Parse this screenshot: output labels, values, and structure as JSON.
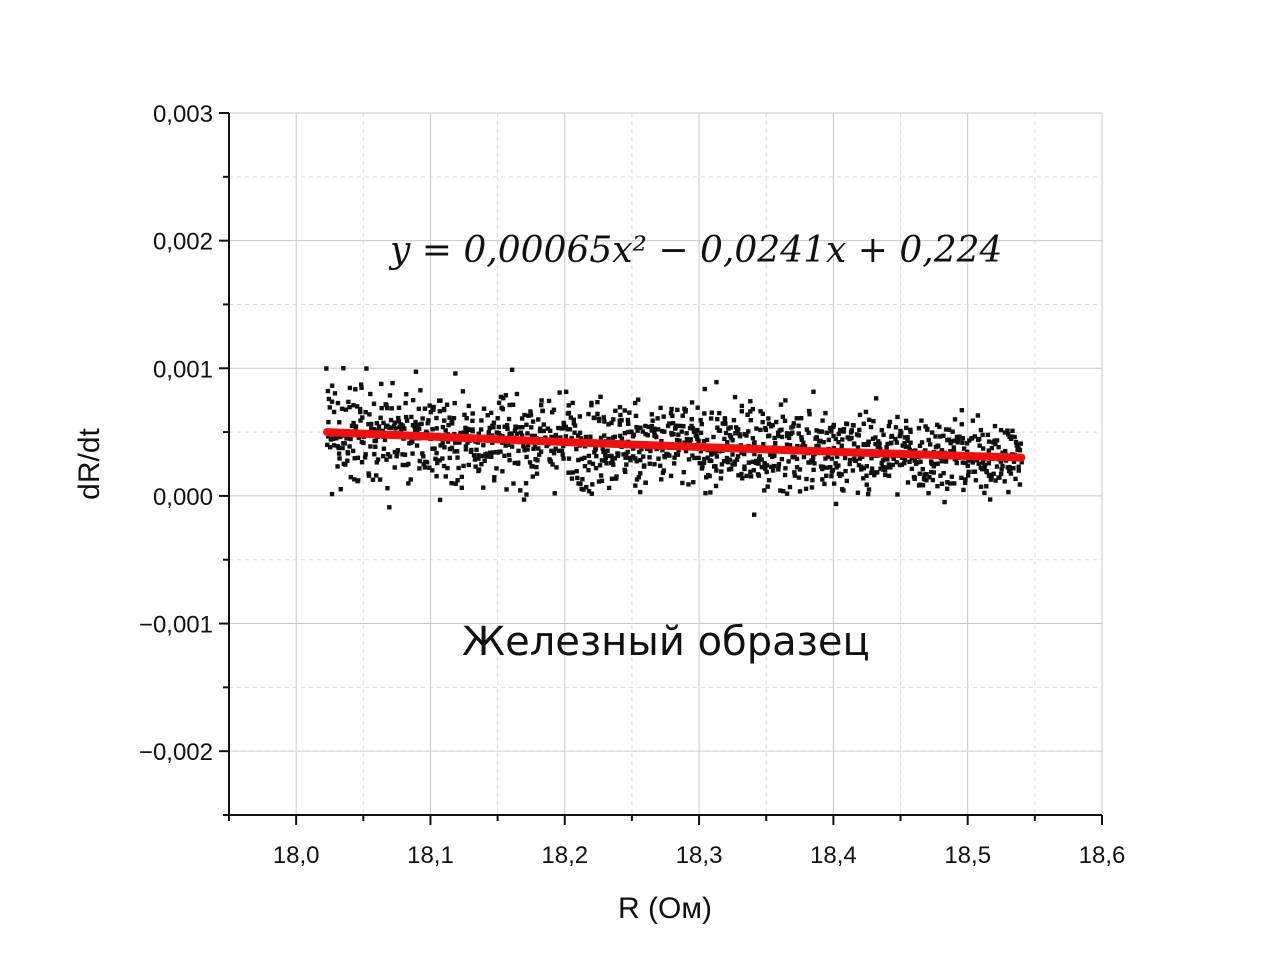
{
  "chart_data": {
    "type": "scatter",
    "xlabel": "R (Ом)",
    "ylabel": "dR/dt",
    "xlim": [
      17.95,
      18.6
    ],
    "ylim": [
      -0.0025,
      0.003
    ],
    "x_ticks": [
      18.0,
      18.1,
      18.2,
      18.3,
      18.4,
      18.5,
      18.6
    ],
    "x_tick_labels": [
      "18,0",
      "18,1",
      "18,2",
      "18,3",
      "18,4",
      "18,5",
      "18,6"
    ],
    "y_ticks": [
      -0.002,
      -0.001,
      0.0,
      0.001,
      0.002,
      0.003
    ],
    "y_tick_labels": [
      "−0,002",
      "−0,001",
      "0,000",
      "0,001",
      "0,002",
      "0,003"
    ],
    "grid": true,
    "scatter": {
      "x_range": [
        18.023,
        18.54
      ],
      "count": 1400,
      "color": "#111111"
    },
    "fit_curve": {
      "start": [
        18.023,
        0.0005
      ],
      "end": [
        18.54,
        0.0003
      ],
      "color": "#ee1111"
    },
    "equation": "y = 0,00065x² − 0,0241x + 0,224",
    "annotation": "Железный образец"
  }
}
